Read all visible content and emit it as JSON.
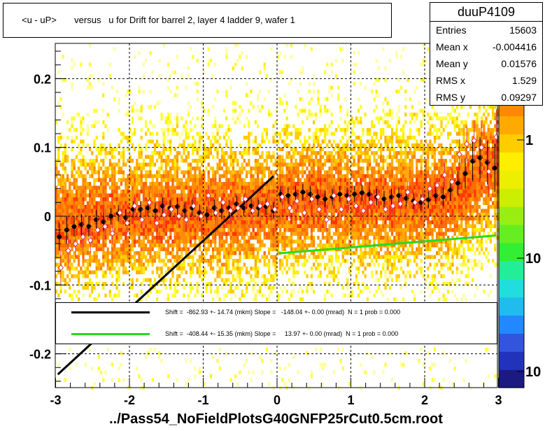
{
  "title": "<u - uP>       versus   u for Drift for barrel 2, layer 4 ladder 9, wafer 1",
  "footer": "../Pass54_NoFieldPlotsG40GNFP25rCut0.5cm.root",
  "stats": {
    "name": "duuP4109",
    "rows": [
      {
        "label": "Entries",
        "value": "15603"
      },
      {
        "label": "Mean x",
        "value": "-0.004416"
      },
      {
        "label": "Mean y",
        "value": "0.01576"
      },
      {
        "label": "RMS x",
        "value": "1.529"
      },
      {
        "label": "RMS y",
        "value": "0.09297"
      }
    ]
  },
  "legend": [
    {
      "color": "#000000",
      "text": "Shift =  -862.93 +- 14.74 (mkm) Slope =   -148.04 +- 0.00 (mrad)  N = 1 prob = 0.000"
    },
    {
      "color": "#22dd22",
      "text": "Shift =  -408.44 +- 15.35 (mkm) Slope =     13.97 +- 0.00 (mrad)  N = 1 prob = 0.000"
    }
  ],
  "colorbar": {
    "tick_labels": [
      "1",
      "10",
      "10"
    ]
  },
  "chart_data": {
    "type": "scatter",
    "xlim": [
      -3,
      3
    ],
    "ylim": [
      -0.25,
      0.25
    ],
    "x_ticks": [
      -3,
      -2,
      -1,
      0,
      1,
      2,
      3
    ],
    "x_tick_labels": [
      "-3",
      "-2",
      "-1",
      "0",
      "1",
      "2",
      "3"
    ],
    "y_ticks": [
      -0.2,
      -0.1,
      0,
      0.1,
      0.2
    ],
    "y_tick_labels": [
      "-0.2",
      "-0.1",
      "0",
      "0.1",
      "0.2"
    ],
    "grid": true,
    "lines": [
      {
        "color": "#000000",
        "x": [
          -2.97,
          -0.05
        ],
        "y": [
          -0.23,
          0.058
        ]
      },
      {
        "color": "#22dd22",
        "x": [
          0.02,
          2.97
        ],
        "y": [
          -0.054,
          -0.028
        ]
      }
    ],
    "profile_x": [
      -2.95,
      -2.85,
      -2.75,
      -2.65,
      -2.55,
      -2.45,
      -2.35,
      -2.25,
      -2.15,
      -2.05,
      -1.95,
      -1.85,
      -1.75,
      -1.65,
      -1.55,
      -1.45,
      -1.35,
      -1.25,
      -1.15,
      -1.05,
      -0.95,
      -0.85,
      -0.75,
      -0.65,
      -0.55,
      -0.45,
      -0.35,
      -0.25,
      -0.15,
      -0.05,
      0.05,
      0.15,
      0.25,
      0.35,
      0.45,
      0.55,
      0.65,
      0.75,
      0.85,
      0.95,
      1.05,
      1.15,
      1.25,
      1.35,
      1.45,
      1.55,
      1.65,
      1.75,
      1.85,
      1.95,
      2.05,
      2.15,
      2.25,
      2.35,
      2.45,
      2.55,
      2.65,
      2.75,
      2.85,
      2.95
    ],
    "series": [
      {
        "name": "",
        "marker": "filled-circle",
        "color": "#000000",
        "y": [
          -0.03,
          -0.02,
          -0.015,
          -0.012,
          -0.015,
          -0.005,
          -0.008,
          0.0,
          0.004,
          -0.002,
          0.01,
          0.01,
          0.012,
          0.008,
          0.015,
          0.012,
          0.014,
          0.008,
          0.012,
          0.005,
          0.002,
          0.012,
          0.008,
          0.012,
          0.018,
          0.012,
          0.015,
          0.012,
          0.014,
          0.008,
          0.032,
          0.03,
          0.032,
          0.035,
          0.032,
          0.028,
          0.025,
          0.028,
          0.032,
          0.03,
          0.032,
          0.034,
          0.032,
          0.028,
          0.025,
          0.028,
          0.03,
          0.026,
          0.022,
          0.02,
          0.024,
          0.03,
          0.028,
          0.038,
          0.048,
          0.062,
          0.08,
          0.085,
          0.078,
          0.07
        ],
        "err": [
          0.02,
          0.02,
          0.015,
          0.015,
          0.015,
          0.014,
          0.013,
          0.012,
          0.012,
          0.012,
          0.012,
          0.012,
          0.012,
          0.012,
          0.012,
          0.012,
          0.012,
          0.012,
          0.012,
          0.012,
          0.012,
          0.012,
          0.012,
          0.012,
          0.012,
          0.012,
          0.012,
          0.012,
          0.012,
          0.012,
          0.012,
          0.012,
          0.012,
          0.012,
          0.012,
          0.012,
          0.012,
          0.012,
          0.012,
          0.012,
          0.012,
          0.012,
          0.012,
          0.012,
          0.012,
          0.012,
          0.012,
          0.012,
          0.012,
          0.012,
          0.012,
          0.012,
          0.014,
          0.016,
          0.018,
          0.022,
          0.028,
          0.03,
          0.032,
          0.035
        ]
      },
      {
        "name": "",
        "marker": "open-diamond",
        "color": "#e0304a",
        "y": [
          -0.075,
          -0.05,
          -0.04,
          -0.03,
          -0.035,
          -0.02,
          -0.015,
          -0.025,
          0.005,
          -0.01,
          0.015,
          -0.005,
          0.02,
          -0.01,
          0.002,
          0.01,
          0.0,
          -0.005,
          0.015,
          0.0,
          0.03,
          0.005,
          0.02,
          0.008,
          0.012,
          0.025,
          0.008,
          0.015,
          0.018,
          0.01,
          0.028,
          0.012,
          0.022,
          0.005,
          0.025,
          0.01,
          -0.005,
          0.03,
          0.01,
          0.025,
          0.015,
          0.008,
          0.02,
          0.028,
          0.01,
          0.015,
          0.018,
          0.035,
          0.02,
          0.025,
          0.04,
          0.045,
          0.06,
          0.05,
          0.09,
          0.105,
          0.11,
          0.1,
          0.065,
          0.115
        ],
        "err": [
          0.025,
          0.025,
          0.02,
          0.02,
          0.02,
          0.018,
          0.016,
          0.016,
          0.016,
          0.016,
          0.016,
          0.016,
          0.016,
          0.016,
          0.016,
          0.016,
          0.016,
          0.016,
          0.016,
          0.016,
          0.016,
          0.016,
          0.016,
          0.016,
          0.016,
          0.016,
          0.016,
          0.016,
          0.016,
          0.016,
          0.016,
          0.016,
          0.016,
          0.016,
          0.016,
          0.016,
          0.016,
          0.016,
          0.016,
          0.016,
          0.016,
          0.016,
          0.016,
          0.016,
          0.016,
          0.016,
          0.016,
          0.016,
          0.016,
          0.016,
          0.016,
          0.016,
          0.018,
          0.02,
          0.022,
          0.026,
          0.03,
          0.034,
          0.036,
          0.04
        ]
      }
    ]
  }
}
